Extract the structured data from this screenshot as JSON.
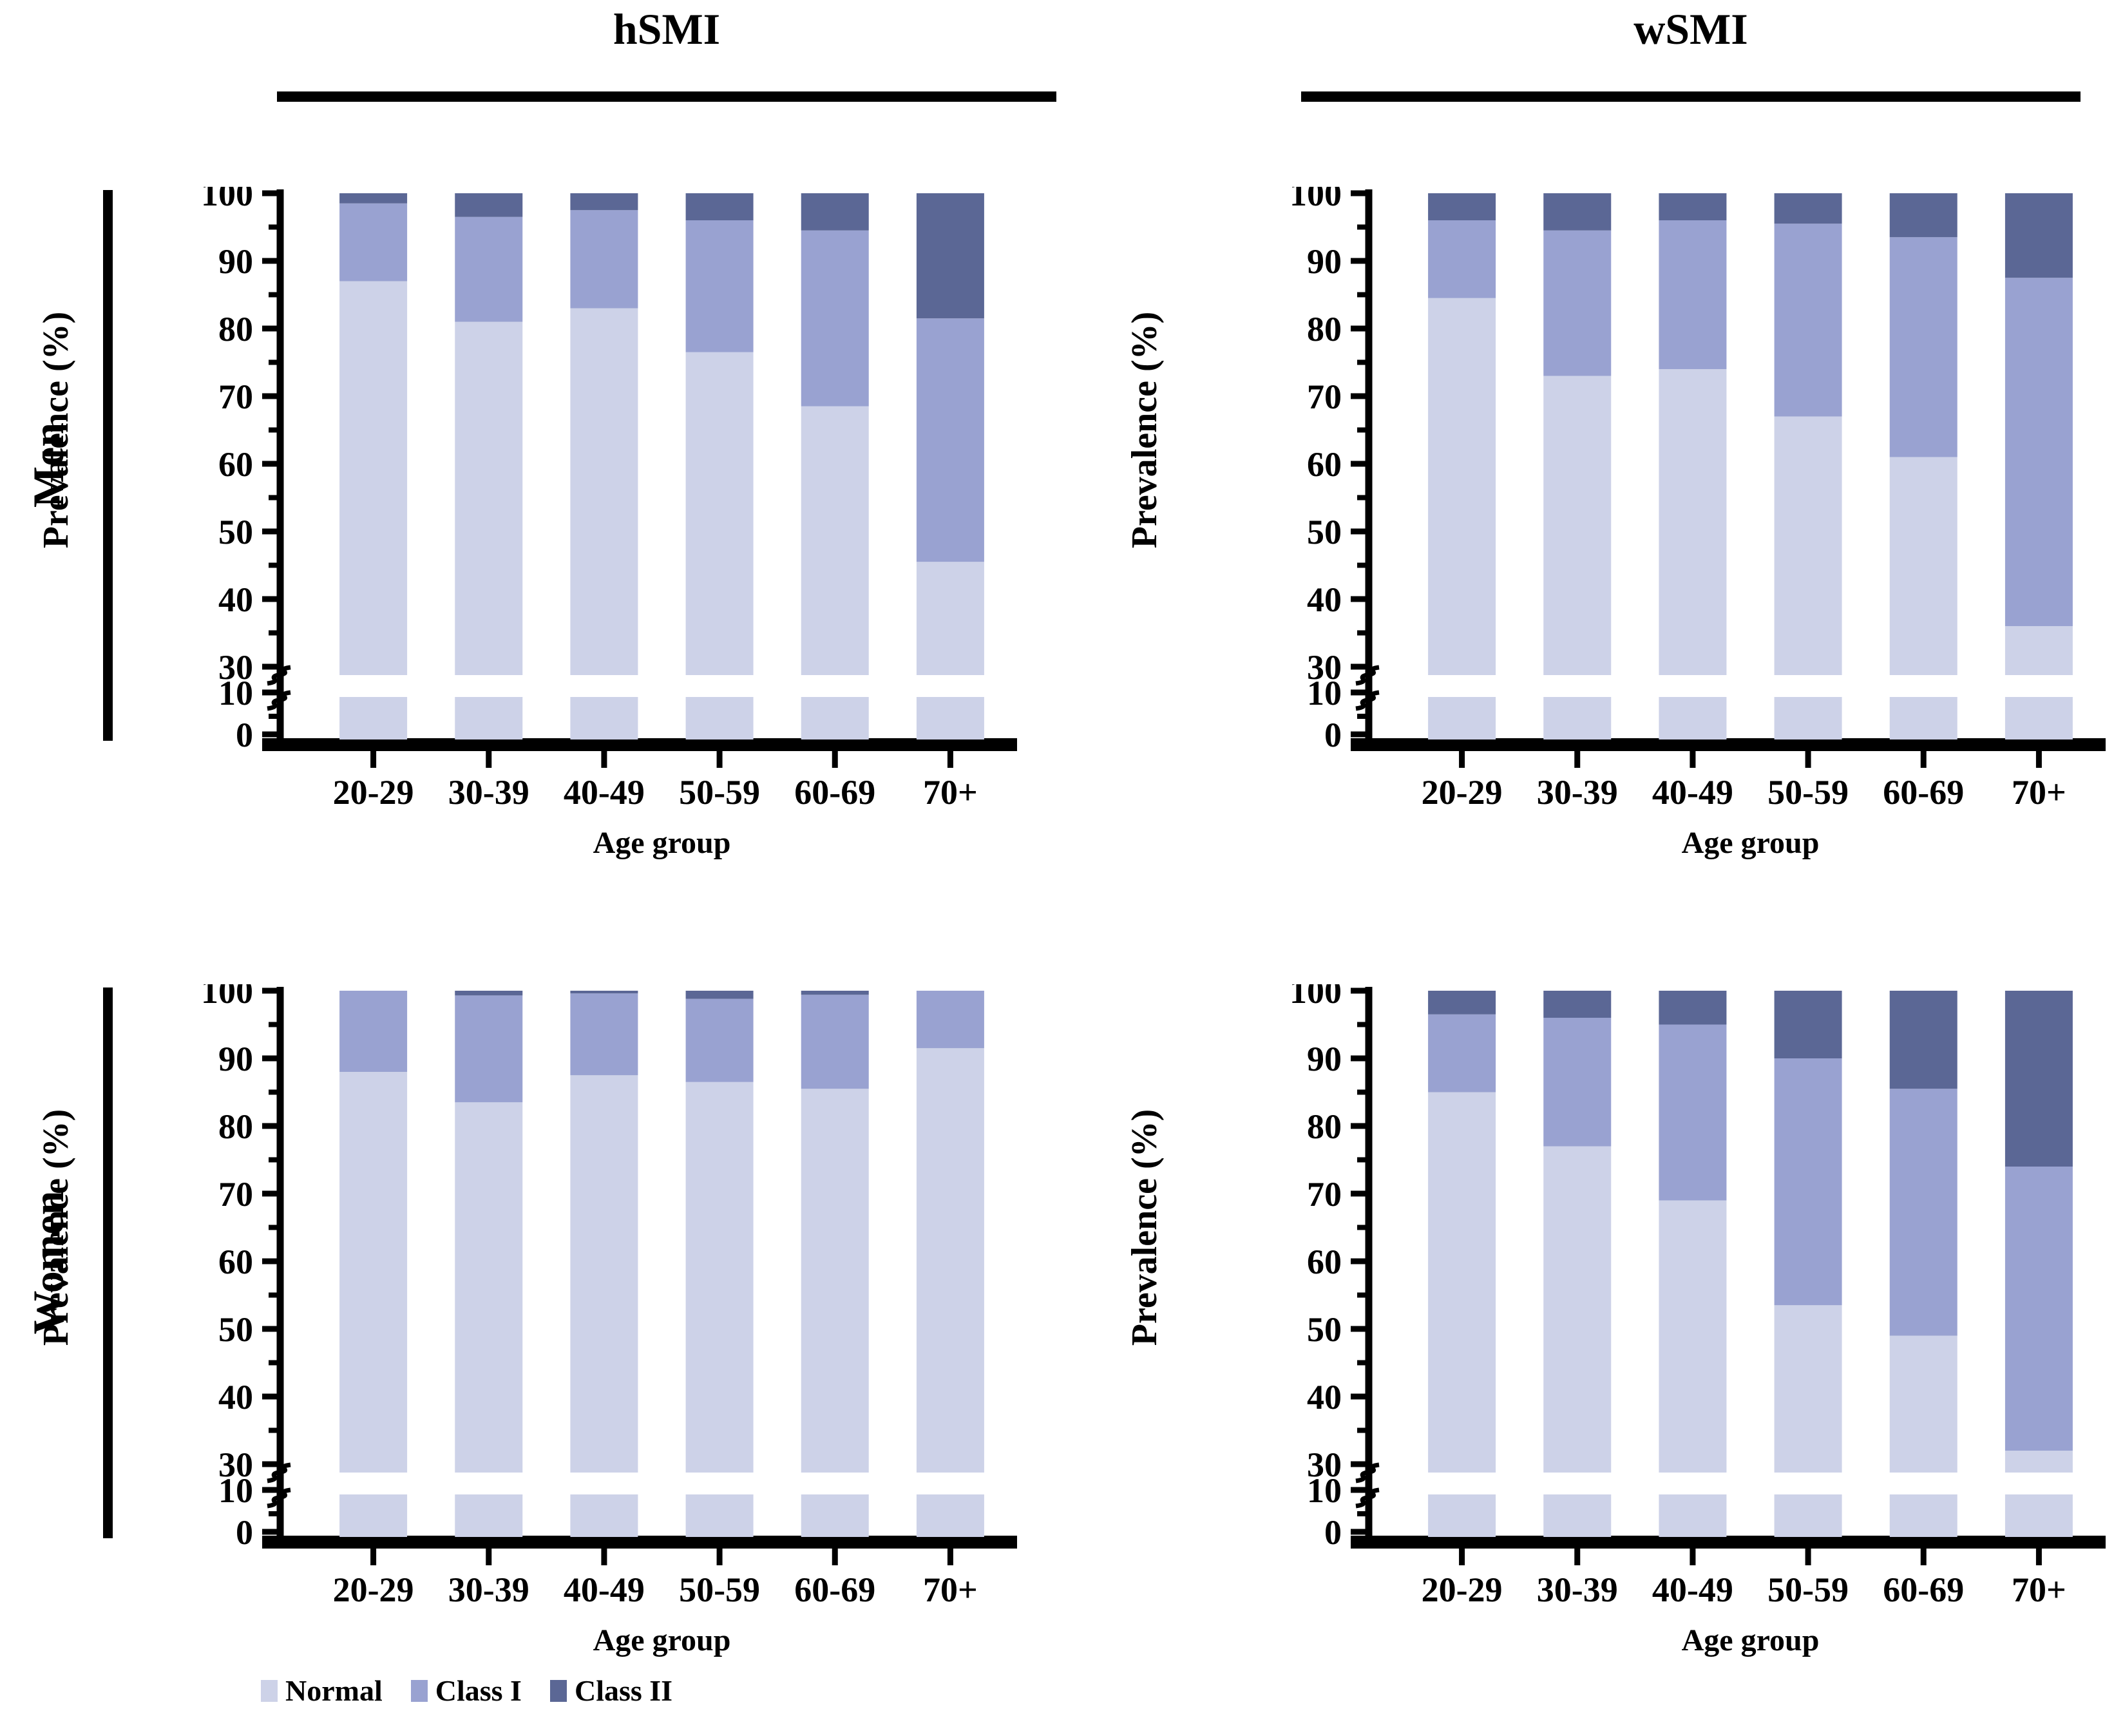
{
  "figure": {
    "background": "#ffffff",
    "columns": [
      "hSMI",
      "wSMI"
    ],
    "rows": [
      "Men",
      "Women"
    ],
    "y_axis_label": "Prevalence (%)",
    "x_axis_label": "Age group",
    "y_ticks_upper": [
      100,
      90,
      80,
      70,
      60,
      50,
      40,
      30
    ],
    "y_ticks_lower": [
      10,
      0
    ],
    "axis_break_note": "y-axis broken between 10 and 30",
    "legend": [
      {
        "label": "Normal",
        "color": "#cdd2e8"
      },
      {
        "label": "Class I",
        "color": "#99a2d1"
      },
      {
        "label": "Class II",
        "color": "#5b6795"
      }
    ]
  },
  "chart_data": [
    {
      "type": "bar",
      "stacked": true,
      "row": "Men",
      "column": "hSMI",
      "categories": [
        "20-29",
        "30-39",
        "40-49",
        "50-59",
        "60-69",
        "70+"
      ],
      "xlabel": "Age group",
      "ylabel": "Prevalence (%)",
      "ylim": [
        0,
        100
      ],
      "axis_break": [
        10,
        30
      ],
      "grid": false,
      "legend_position": "bottom-left",
      "series": [
        {
          "name": "Normal",
          "values": [
            87,
            81,
            83,
            76.5,
            68.5,
            45.5
          ]
        },
        {
          "name": "Class I",
          "values": [
            11.5,
            15.5,
            14.5,
            19.5,
            26,
            36
          ]
        },
        {
          "name": "Class II",
          "values": [
            1.5,
            3.5,
            2.5,
            4,
            5.5,
            18.5
          ]
        }
      ]
    },
    {
      "type": "bar",
      "stacked": true,
      "row": "Men",
      "column": "wSMI",
      "categories": [
        "20-29",
        "30-39",
        "40-49",
        "50-59",
        "60-69",
        "70+"
      ],
      "xlabel": "Age group",
      "ylabel": "Prevalence (%)",
      "ylim": [
        0,
        100
      ],
      "axis_break": [
        10,
        30
      ],
      "grid": false,
      "series": [
        {
          "name": "Normal",
          "values": [
            84.5,
            73,
            74,
            67,
            61,
            36
          ]
        },
        {
          "name": "Class I",
          "values": [
            11.5,
            21.5,
            22,
            28.5,
            32.5,
            51.5
          ]
        },
        {
          "name": "Class II",
          "values": [
            4,
            5.5,
            4,
            4.5,
            6.5,
            12.5
          ]
        }
      ]
    },
    {
      "type": "bar",
      "stacked": true,
      "row": "Women",
      "column": "hSMI",
      "categories": [
        "20-29",
        "30-39",
        "40-49",
        "50-59",
        "60-69",
        "70+"
      ],
      "xlabel": "Age group",
      "ylabel": "Prevalence (%)",
      "ylim": [
        0,
        100
      ],
      "axis_break": [
        10,
        30
      ],
      "grid": false,
      "series": [
        {
          "name": "Normal",
          "values": [
            88,
            83.5,
            87.5,
            86.5,
            85.5,
            91.5
          ]
        },
        {
          "name": "Class I",
          "values": [
            12,
            15.8,
            12.1,
            12.3,
            13.9,
            8.5
          ]
        },
        {
          "name": "Class II",
          "values": [
            0,
            0.7,
            0.4,
            1.2,
            0.6,
            0
          ]
        }
      ]
    },
    {
      "type": "bar",
      "stacked": true,
      "row": "Women",
      "column": "wSMI",
      "categories": [
        "20-29",
        "30-39",
        "40-49",
        "50-59",
        "60-69",
        "70+"
      ],
      "xlabel": "Age group",
      "ylabel": "Prevalence (%)",
      "ylim": [
        0,
        100
      ],
      "axis_break": [
        10,
        30
      ],
      "grid": false,
      "series": [
        {
          "name": "Normal",
          "values": [
            85,
            77,
            69,
            53.5,
            49,
            32
          ]
        },
        {
          "name": "Class I",
          "values": [
            11.5,
            19,
            26,
            36.5,
            36.5,
            42
          ]
        },
        {
          "name": "Class II",
          "values": [
            3.5,
            4,
            5,
            10,
            14.5,
            26
          ]
        }
      ]
    }
  ]
}
